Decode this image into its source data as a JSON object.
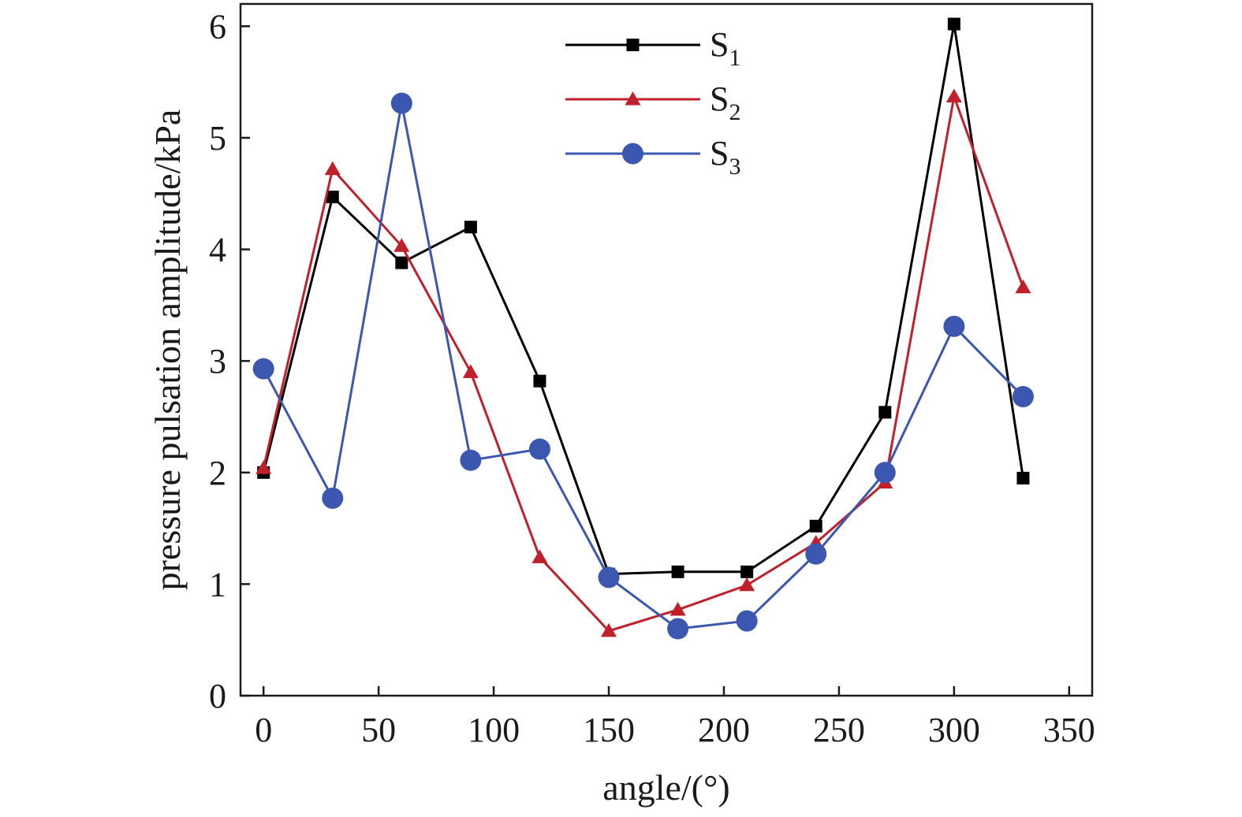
{
  "chart_data": {
    "type": "line",
    "xlabel": "angle/(°)",
    "ylabel": "pressure pulsation amplitude/kPa",
    "xlim": [
      -10,
      360
    ],
    "ylim": [
      0,
      6.2
    ],
    "xticks": [
      0,
      50,
      100,
      150,
      200,
      250,
      300,
      350
    ],
    "yticks": [
      0,
      1,
      2,
      3,
      4,
      5,
      6
    ],
    "grid": false,
    "legend_position": "top-center",
    "x": [
      0,
      30,
      60,
      90,
      120,
      150,
      180,
      210,
      240,
      270,
      300,
      330
    ],
    "series": [
      {
        "name": "S",
        "subscript": "1",
        "color": "#000000",
        "marker": "square",
        "values": [
          2.0,
          4.47,
          3.88,
          4.2,
          2.82,
          1.09,
          1.11,
          1.11,
          1.52,
          2.54,
          6.02,
          1.95
        ]
      },
      {
        "name": "S",
        "subscript": "2",
        "color": "#c0202a",
        "marker": "triangle",
        "values": [
          2.04,
          4.72,
          4.03,
          2.9,
          1.24,
          0.58,
          0.77,
          0.99,
          1.37,
          1.91,
          5.37,
          3.66
        ]
      },
      {
        "name": "S",
        "subscript": "3",
        "color": "#3b57b0",
        "marker": "circle",
        "values": [
          2.93,
          1.77,
          5.31,
          2.11,
          2.21,
          1.06,
          0.6,
          0.67,
          1.27,
          2.0,
          3.31,
          2.68
        ]
      }
    ]
  }
}
